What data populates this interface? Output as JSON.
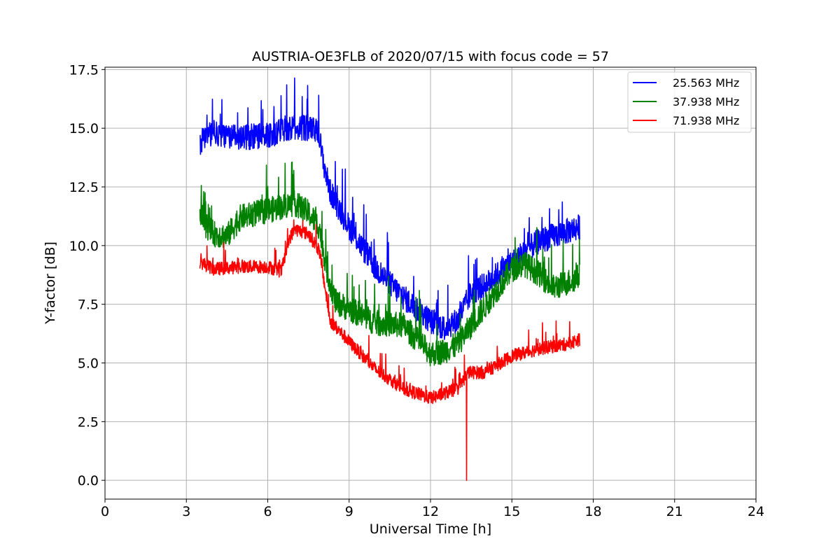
{
  "chart_data": {
    "type": "line",
    "title": "AUSTRIA-OE3FLB of 2020/07/15 with focus code = 57",
    "xlabel": "Universal Time [h]",
    "ylabel": "Y-factor [dB]",
    "xlim": [
      0,
      24
    ],
    "ylim": [
      -0.8,
      17.6
    ],
    "xticks": [
      0,
      3,
      6,
      9,
      12,
      15,
      18,
      21,
      24
    ],
    "xtick_labels": [
      "0",
      "3",
      "6",
      "9",
      "12",
      "15",
      "18",
      "21",
      "24"
    ],
    "yticks": [
      0,
      2.5,
      5,
      7.5,
      10,
      12.5,
      15,
      17.5
    ],
    "ytick_labels": [
      "0.0",
      "2.5",
      "5.0",
      "7.5",
      "10.0",
      "12.5",
      "15.0",
      "17.5"
    ],
    "grid": true,
    "legend_position": "top-right",
    "series": [
      {
        "name": "25.563 MHz",
        "color": "#0000ff",
        "noise": 0.55,
        "x": [
          3.5,
          3.6,
          4.0,
          5.0,
          6.0,
          7.0,
          7.5,
          7.9,
          8.0,
          8.3,
          9.0,
          10.0,
          11.0,
          12.0,
          12.5,
          13.0,
          13.5,
          14.0,
          15.0,
          16.0,
          17.0,
          17.5
        ],
        "y": [
          14.3,
          14.6,
          14.8,
          14.6,
          14.7,
          15.0,
          15.0,
          14.8,
          13.8,
          12.3,
          10.8,
          9.0,
          7.8,
          6.8,
          6.5,
          6.8,
          8.0,
          8.3,
          9.3,
          10.2,
          10.6,
          10.8
        ]
      },
      {
        "name": "37.938 MHz",
        "color": "#008000",
        "noise": 0.55,
        "x": [
          3.5,
          3.7,
          4.0,
          4.5,
          5.0,
          6.0,
          7.0,
          7.5,
          7.9,
          8.2,
          8.5,
          9.0,
          10.0,
          11.0,
          12.0,
          12.5,
          13.0,
          13.5,
          14.0,
          15.0,
          15.5,
          16.0,
          16.5,
          17.0,
          17.5
        ],
        "y": [
          11.5,
          10.9,
          10.5,
          10.4,
          11.2,
          11.5,
          11.8,
          11.4,
          10.8,
          8.8,
          7.6,
          7.3,
          6.7,
          6.6,
          5.4,
          5.5,
          5.8,
          6.6,
          7.4,
          9.0,
          9.2,
          8.8,
          8.2,
          8.4,
          8.7
        ]
      },
      {
        "name": "71.938 MHz",
        "color": "#ff0000",
        "noise": 0.28,
        "x": [
          3.5,
          4.0,
          5.0,
          6.0,
          6.5,
          6.8,
          7.0,
          7.5,
          7.9,
          8.3,
          9.0,
          10.0,
          11.0,
          12.0,
          12.5,
          13.0,
          13.4,
          14.0,
          15.0,
          16.0,
          17.0,
          17.5
        ],
        "y": [
          9.3,
          9.0,
          9.1,
          9.1,
          8.9,
          10.3,
          10.7,
          10.5,
          9.8,
          6.8,
          5.9,
          4.7,
          3.9,
          3.5,
          3.7,
          3.9,
          4.6,
          4.6,
          5.3,
          5.6,
          5.8,
          6.0
        ]
      }
    ],
    "annotations": [
      {
        "series": "71.938 MHz",
        "x": 13.33,
        "y": 0.0,
        "type": "dropout-spike"
      }
    ]
  }
}
